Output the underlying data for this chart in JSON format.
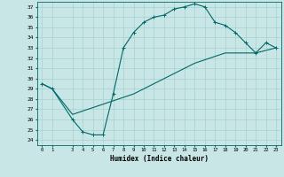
{
  "xlabel": "Humidex (Indice chaleur)",
  "bg_color": "#c8e6e6",
  "grid_color": "#a8d0d0",
  "line_color": "#006868",
  "ylim": [
    23.5,
    37.5
  ],
  "xlim": [
    -0.5,
    23.5
  ],
  "yticks": [
    24,
    25,
    26,
    27,
    28,
    29,
    30,
    31,
    32,
    33,
    34,
    35,
    36,
    37
  ],
  "xticks": [
    0,
    1,
    3,
    4,
    5,
    6,
    7,
    8,
    9,
    10,
    11,
    12,
    13,
    14,
    15,
    16,
    17,
    18,
    19,
    20,
    21,
    22,
    23
  ],
  "curve1_x": [
    0,
    1,
    3,
    4,
    5,
    6,
    7,
    8,
    9,
    10,
    11,
    12,
    13,
    14,
    15,
    16,
    17,
    18,
    19,
    20,
    21,
    22,
    23
  ],
  "curve1_y": [
    29.5,
    29.0,
    26.0,
    24.8,
    24.5,
    24.5,
    28.5,
    33.0,
    34.5,
    35.5,
    36.0,
    36.2,
    36.8,
    37.0,
    37.3,
    37.0,
    35.5,
    35.2,
    34.5,
    33.5,
    32.5,
    33.5,
    33.0
  ],
  "curve2_x": [
    0,
    1,
    3,
    6,
    9,
    12,
    15,
    18,
    21,
    23
  ],
  "curve2_y": [
    29.5,
    29.0,
    26.5,
    27.5,
    28.5,
    30.0,
    31.5,
    32.5,
    32.5,
    33.0
  ]
}
